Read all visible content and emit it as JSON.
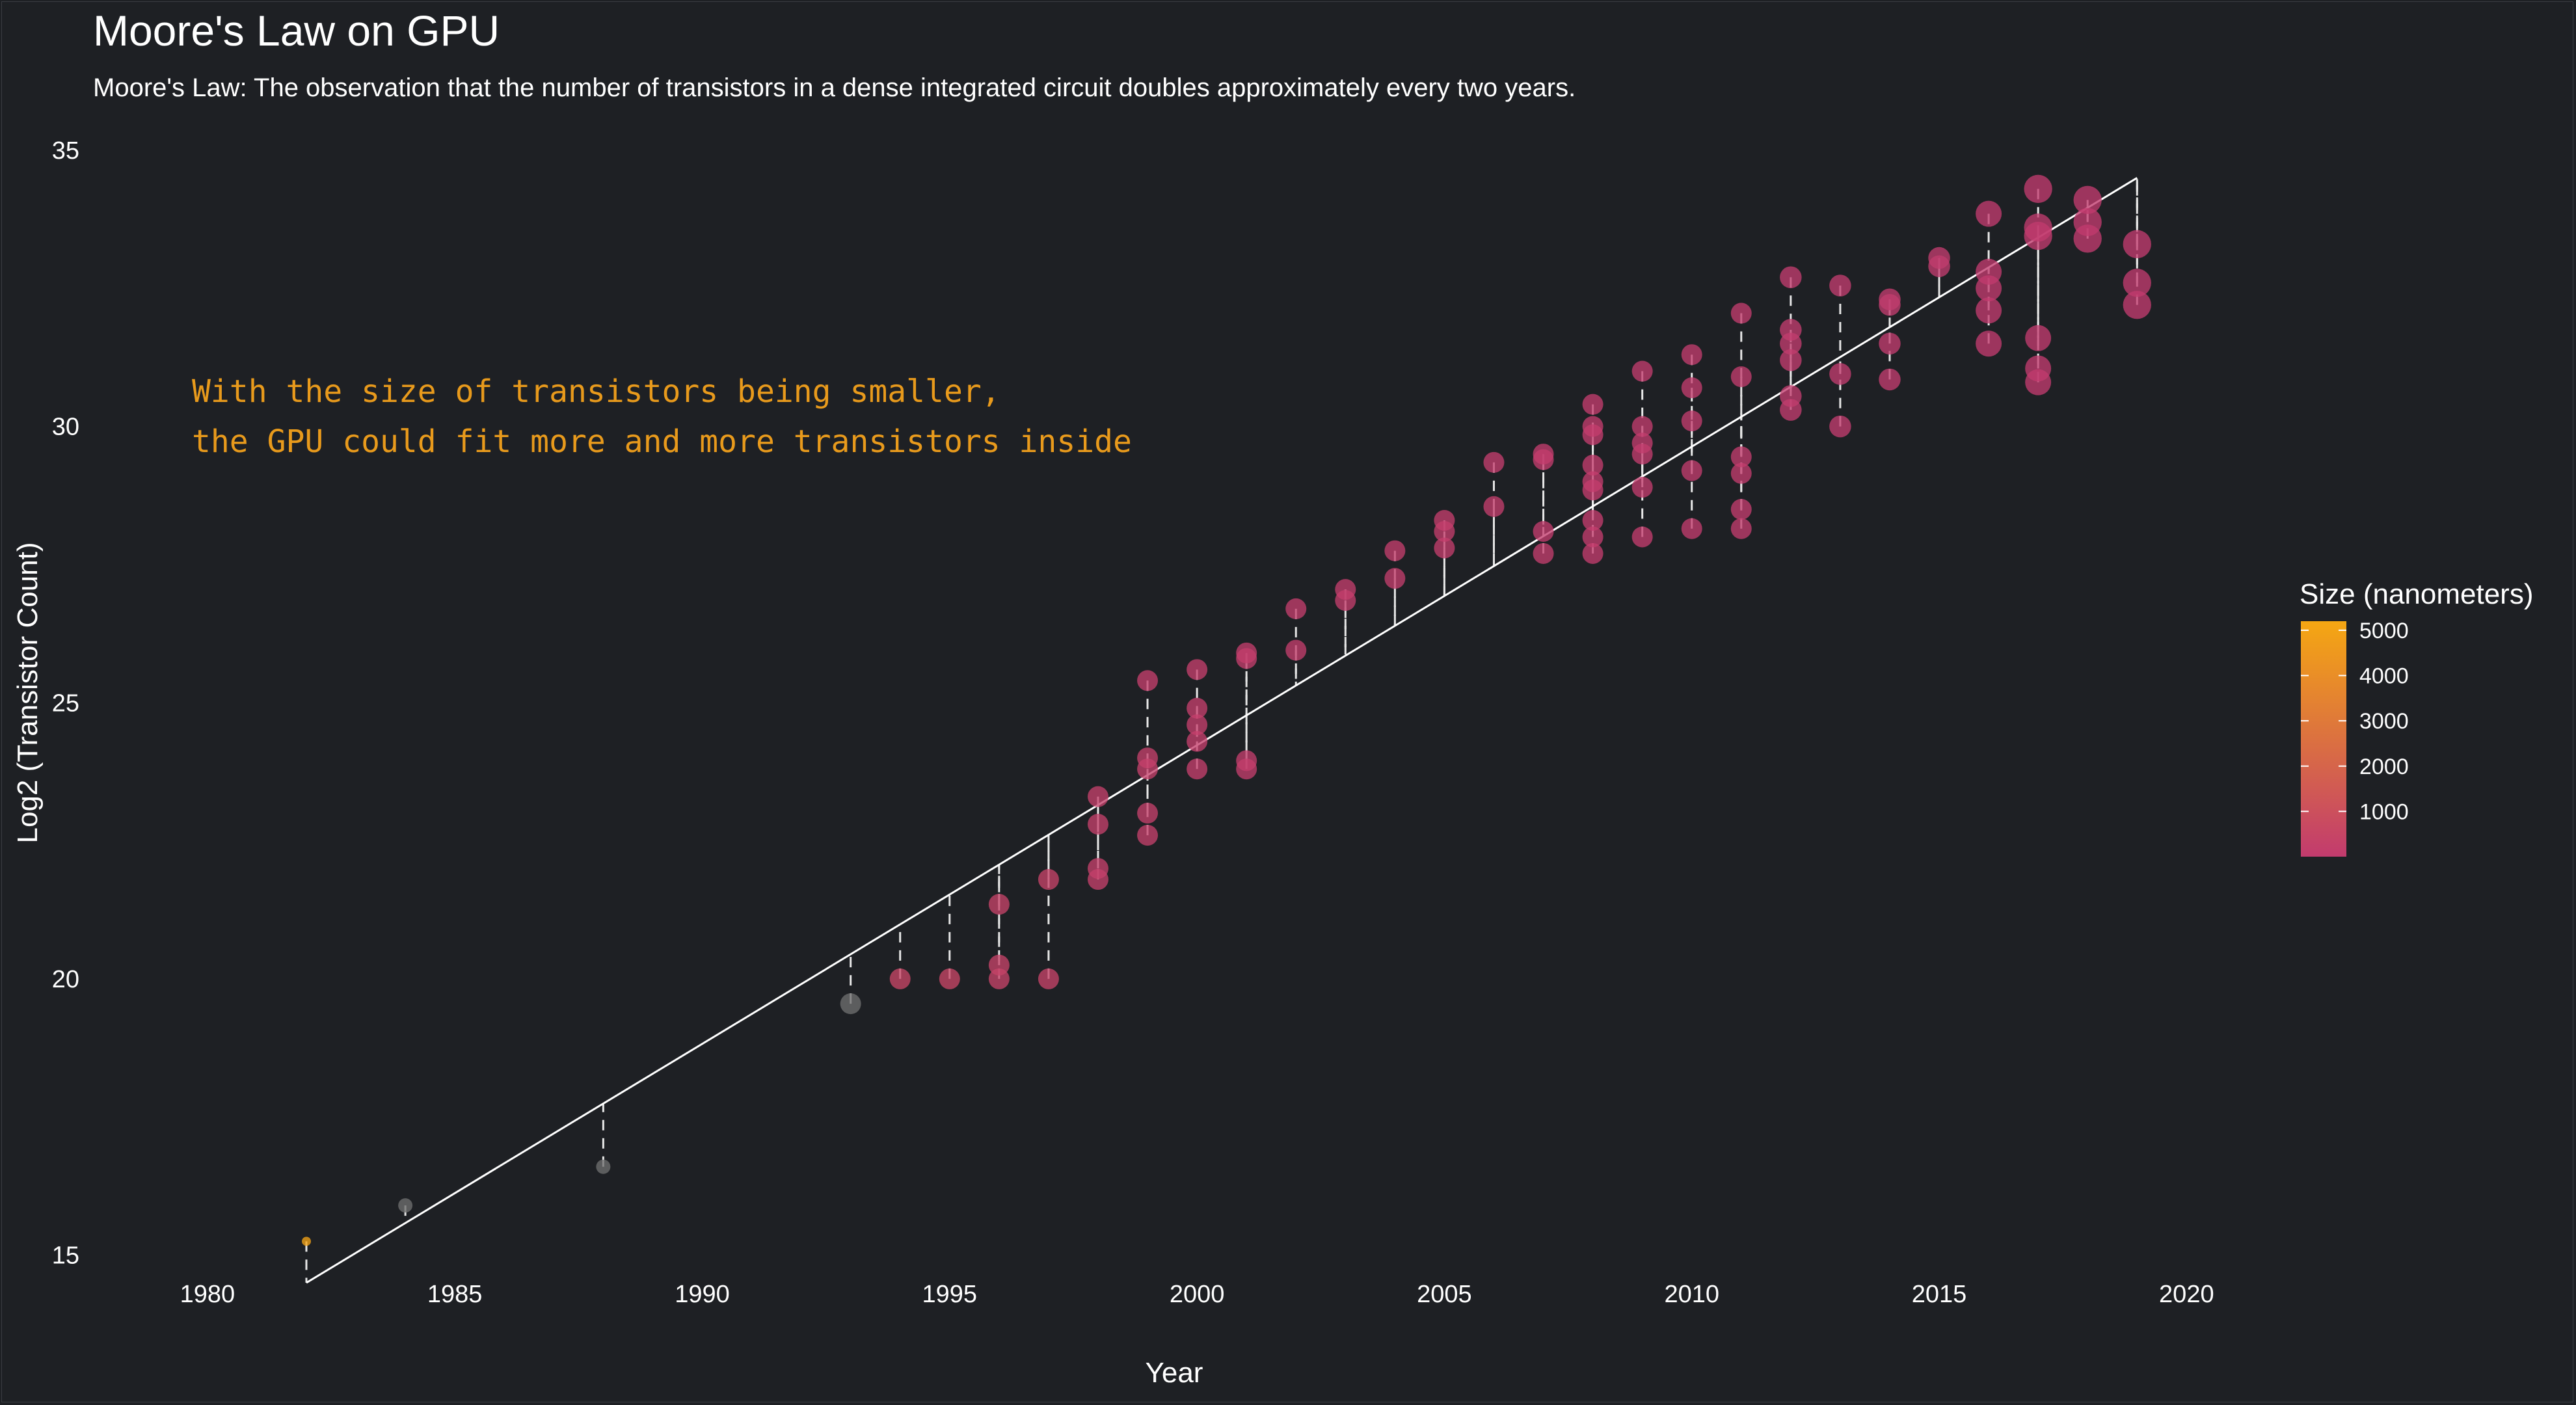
{
  "chart_data": {
    "type": "scatter",
    "title": "Moore's Law on GPU",
    "subtitle": "Moore's Law: The observation that the number of transistors in a dense integrated circuit doubles approximately every two years.",
    "xlabel": "Year",
    "ylabel": "Log2 (Transistor Count)",
    "xlim": [
      1978.7,
      2021.1
    ],
    "ylim": [
      13.7,
      35.6
    ],
    "x_ticks": [
      "1980",
      "1985",
      "1990",
      "1995",
      "2000",
      "2005",
      "2010",
      "2015",
      "2020"
    ],
    "y_ticks": [
      "15",
      "20",
      "25",
      "30",
      "35"
    ],
    "grid": false,
    "annotation": {
      "line1": "With the size of transistors being smaller,",
      "line2": "the GPU could fit more and more transistors inside",
      "color": "#E89A1C"
    },
    "trend_line": {
      "x": [
        1982,
        2019
      ],
      "y": [
        14.5,
        34.5
      ],
      "color": "#FFFFFF"
    },
    "legend": {
      "title": "Size (nanometers)",
      "position": "right",
      "ticks": [
        "5000",
        "4000",
        "3000",
        "2000",
        "1000"
      ],
      "color_low": "#C23B6E",
      "color_high": "#F5A712"
    },
    "na_color": "#6E6E6E",
    "points": [
      {
        "x": 1982,
        "y": 15.25,
        "size": 5000
      },
      {
        "x": 1984,
        "y": 15.9,
        "size": null
      },
      {
        "x": 1988,
        "y": 16.6,
        "size": null
      },
      {
        "x": 1993,
        "y": 19.55,
        "size": null
      },
      {
        "x": 1994,
        "y": 20.0,
        "size": 500
      },
      {
        "x": 1995,
        "y": 20.0,
        "size": 500
      },
      {
        "x": 1996,
        "y": 20.0,
        "size": 350
      },
      {
        "x": 1996,
        "y": 20.25,
        "size": 350
      },
      {
        "x": 1996,
        "y": 21.35,
        "size": 350
      },
      {
        "x": 1997,
        "y": 20.0,
        "size": 350
      },
      {
        "x": 1997,
        "y": 21.8,
        "size": 350
      },
      {
        "x": 1998,
        "y": 21.8,
        "size": 250
      },
      {
        "x": 1998,
        "y": 22.0,
        "size": 250
      },
      {
        "x": 1998,
        "y": 22.8,
        "size": 250
      },
      {
        "x": 1998,
        "y": 23.3,
        "size": 250
      },
      {
        "x": 1999,
        "y": 22.6,
        "size": 220
      },
      {
        "x": 1999,
        "y": 23.0,
        "size": 220
      },
      {
        "x": 1999,
        "y": 23.8,
        "size": 220
      },
      {
        "x": 1999,
        "y": 24.0,
        "size": 220
      },
      {
        "x": 1999,
        "y": 25.4,
        "size": 180
      },
      {
        "x": 2000,
        "y": 23.8,
        "size": 180
      },
      {
        "x": 2000,
        "y": 24.3,
        "size": 180
      },
      {
        "x": 2000,
        "y": 24.6,
        "size": 180
      },
      {
        "x": 2000,
        "y": 24.9,
        "size": 180
      },
      {
        "x": 2000,
        "y": 25.6,
        "size": 180
      },
      {
        "x": 2001,
        "y": 23.8,
        "size": 150
      },
      {
        "x": 2001,
        "y": 23.95,
        "size": 150
      },
      {
        "x": 2001,
        "y": 25.8,
        "size": 150
      },
      {
        "x": 2001,
        "y": 25.9,
        "size": 150
      },
      {
        "x": 2002,
        "y": 25.95,
        "size": 150
      },
      {
        "x": 2002,
        "y": 26.7,
        "size": 150
      },
      {
        "x": 2003,
        "y": 26.85,
        "size": 130
      },
      {
        "x": 2003,
        "y": 27.05,
        "size": 130
      },
      {
        "x": 2004,
        "y": 27.25,
        "size": 130
      },
      {
        "x": 2004,
        "y": 27.75,
        "size": 130
      },
      {
        "x": 2005,
        "y": 27.8,
        "size": 110
      },
      {
        "x": 2005,
        "y": 28.1,
        "size": 90
      },
      {
        "x": 2005,
        "y": 28.3,
        "size": 90
      },
      {
        "x": 2006,
        "y": 28.55,
        "size": 90
      },
      {
        "x": 2006,
        "y": 29.35,
        "size": 80
      },
      {
        "x": 2007,
        "y": 27.7,
        "size": 80
      },
      {
        "x": 2007,
        "y": 28.1,
        "size": 65
      },
      {
        "x": 2007,
        "y": 29.4,
        "size": 65
      },
      {
        "x": 2007,
        "y": 29.5,
        "size": 65
      },
      {
        "x": 2008,
        "y": 27.7,
        "size": 65
      },
      {
        "x": 2008,
        "y": 28.0,
        "size": 55
      },
      {
        "x": 2008,
        "y": 28.3,
        "size": 55
      },
      {
        "x": 2008,
        "y": 28.85,
        "size": 55
      },
      {
        "x": 2008,
        "y": 29.0,
        "size": 55
      },
      {
        "x": 2008,
        "y": 29.3,
        "size": 55
      },
      {
        "x": 2008,
        "y": 29.85,
        "size": 55
      },
      {
        "x": 2008,
        "y": 30.0,
        "size": 55
      },
      {
        "x": 2008,
        "y": 30.4,
        "size": 55
      },
      {
        "x": 2009,
        "y": 28.0,
        "size": 55
      },
      {
        "x": 2009,
        "y": 28.9,
        "size": 40
      },
      {
        "x": 2009,
        "y": 29.5,
        "size": 40
      },
      {
        "x": 2009,
        "y": 29.7,
        "size": 40
      },
      {
        "x": 2009,
        "y": 30.0,
        "size": 40
      },
      {
        "x": 2009,
        "y": 31.0,
        "size": 40
      },
      {
        "x": 2010,
        "y": 28.15,
        "size": 40
      },
      {
        "x": 2010,
        "y": 29.2,
        "size": 40
      },
      {
        "x": 2010,
        "y": 30.1,
        "size": 40
      },
      {
        "x": 2010,
        "y": 30.7,
        "size": 40
      },
      {
        "x": 2010,
        "y": 31.3,
        "size": 40
      },
      {
        "x": 2011,
        "y": 28.15,
        "size": 40
      },
      {
        "x": 2011,
        "y": 28.5,
        "size": 40
      },
      {
        "x": 2011,
        "y": 29.15,
        "size": 40
      },
      {
        "x": 2011,
        "y": 29.45,
        "size": 40
      },
      {
        "x": 2011,
        "y": 30.9,
        "size": 40
      },
      {
        "x": 2011,
        "y": 32.05,
        "size": 40
      },
      {
        "x": 2012,
        "y": 30.3,
        "size": 28
      },
      {
        "x": 2012,
        "y": 30.55,
        "size": 28
      },
      {
        "x": 2012,
        "y": 31.2,
        "size": 28
      },
      {
        "x": 2012,
        "y": 31.5,
        "size": 28
      },
      {
        "x": 2012,
        "y": 31.75,
        "size": 28
      },
      {
        "x": 2012,
        "y": 32.7,
        "size": 28
      },
      {
        "x": 2013,
        "y": 30.0,
        "size": 28
      },
      {
        "x": 2013,
        "y": 30.95,
        "size": 28
      },
      {
        "x": 2013,
        "y": 32.55,
        "size": 28
      },
      {
        "x": 2014,
        "y": 30.85,
        "size": 28
      },
      {
        "x": 2014,
        "y": 31.5,
        "size": 28
      },
      {
        "x": 2014,
        "y": 32.2,
        "size": 28
      },
      {
        "x": 2014,
        "y": 32.3,
        "size": 28
      },
      {
        "x": 2015,
        "y": 32.9,
        "size": 28
      },
      {
        "x": 2015,
        "y": 33.05,
        "size": 28
      },
      {
        "x": 2016,
        "y": 31.5,
        "size": 16
      },
      {
        "x": 2016,
        "y": 32.1,
        "size": 16
      },
      {
        "x": 2016,
        "y": 32.5,
        "size": 16
      },
      {
        "x": 2016,
        "y": 32.8,
        "size": 16
      },
      {
        "x": 2016,
        "y": 33.85,
        "size": 16
      },
      {
        "x": 2017,
        "y": 30.8,
        "size": 16
      },
      {
        "x": 2017,
        "y": 31.05,
        "size": 16
      },
      {
        "x": 2017,
        "y": 31.6,
        "size": 16
      },
      {
        "x": 2017,
        "y": 33.45,
        "size": 12
      },
      {
        "x": 2017,
        "y": 33.6,
        "size": 12
      },
      {
        "x": 2017,
        "y": 34.3,
        "size": 12
      },
      {
        "x": 2018,
        "y": 33.4,
        "size": 12
      },
      {
        "x": 2018,
        "y": 33.7,
        "size": 12
      },
      {
        "x": 2018,
        "y": 34.1,
        "size": 12
      },
      {
        "x": 2019,
        "y": 32.2,
        "size": 12
      },
      {
        "x": 2019,
        "y": 32.6,
        "size": 12
      },
      {
        "x": 2019,
        "y": 33.3,
        "size": 12
      }
    ]
  }
}
